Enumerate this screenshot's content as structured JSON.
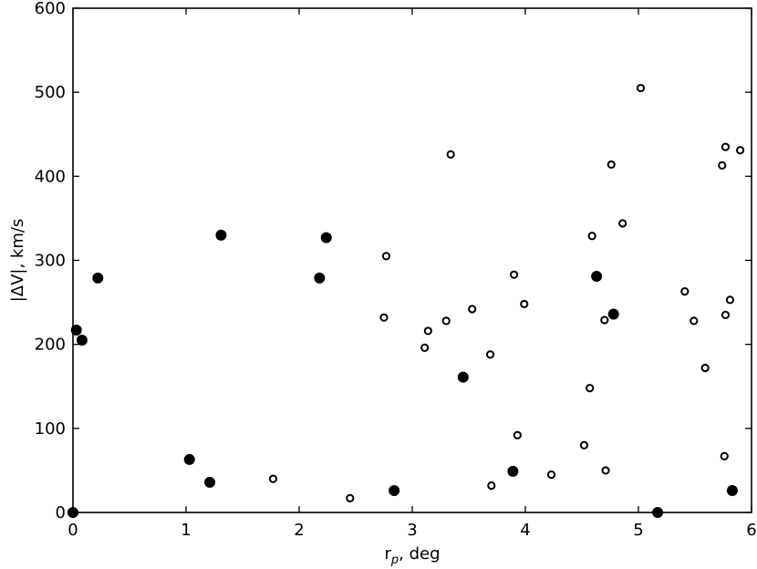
{
  "chart_data": {
    "type": "scatter",
    "xlabel_main": "r",
    "xlabel_sub": "p",
    "xlabel_rest": ", deg",
    "ylabel": "|ΔV|, km/s",
    "xlim": [
      0,
      6
    ],
    "ylim": [
      0,
      600
    ],
    "xticks": [
      0,
      1,
      2,
      3,
      4,
      5,
      6
    ],
    "yticks": [
      0,
      100,
      200,
      300,
      400,
      500,
      600
    ],
    "grid": false,
    "series": [
      {
        "marker": "filled-circle",
        "points": [
          [
            0.0,
            0
          ],
          [
            0.03,
            217
          ],
          [
            0.08,
            205
          ],
          [
            0.22,
            279
          ],
          [
            1.03,
            63
          ],
          [
            1.21,
            36
          ],
          [
            1.31,
            330
          ],
          [
            2.18,
            279
          ],
          [
            2.24,
            327
          ],
          [
            2.84,
            26
          ],
          [
            3.45,
            161
          ],
          [
            3.89,
            49
          ],
          [
            4.63,
            281
          ],
          [
            4.78,
            236
          ],
          [
            5.17,
            0
          ],
          [
            5.83,
            26
          ]
        ]
      },
      {
        "marker": "open-circle",
        "points": [
          [
            1.77,
            40
          ],
          [
            2.45,
            17
          ],
          [
            2.75,
            232
          ],
          [
            2.77,
            305
          ],
          [
            3.11,
            196
          ],
          [
            3.14,
            216
          ],
          [
            3.3,
            228
          ],
          [
            3.34,
            426
          ],
          [
            3.53,
            242
          ],
          [
            3.69,
            188
          ],
          [
            3.7,
            32
          ],
          [
            3.9,
            283
          ],
          [
            3.93,
            92
          ],
          [
            3.99,
            248
          ],
          [
            4.23,
            45
          ],
          [
            4.52,
            80
          ],
          [
            4.57,
            148
          ],
          [
            4.59,
            329
          ],
          [
            4.7,
            229
          ],
          [
            4.71,
            50
          ],
          [
            4.76,
            414
          ],
          [
            4.86,
            344
          ],
          [
            5.02,
            505
          ],
          [
            5.41,
            263
          ],
          [
            5.49,
            228
          ],
          [
            5.59,
            172
          ],
          [
            5.74,
            413
          ],
          [
            5.76,
            67
          ],
          [
            5.77,
            235
          ],
          [
            5.77,
            435
          ],
          [
            5.81,
            253
          ],
          [
            5.9,
            431
          ]
        ]
      }
    ]
  }
}
